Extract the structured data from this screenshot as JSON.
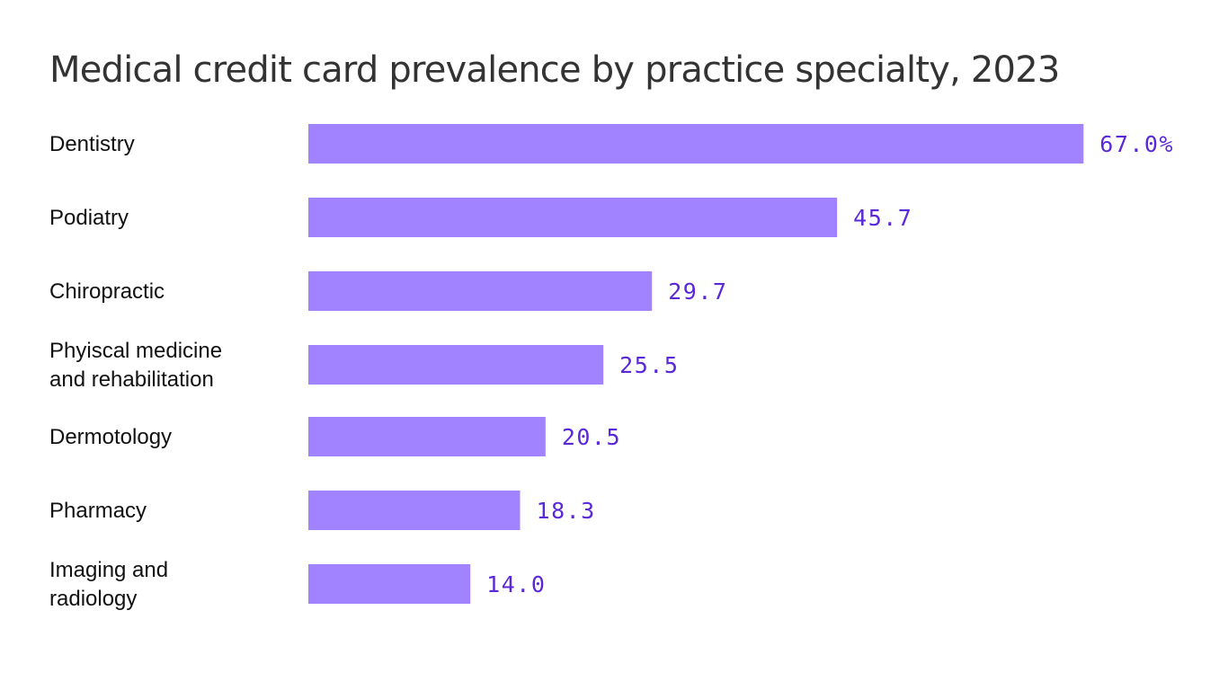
{
  "chart_data": {
    "type": "bar",
    "orientation": "horizontal",
    "title": "Medical credit card prevalence by practice specialty, 2023",
    "categories": [
      [
        "Dentistry"
      ],
      [
        "Podiatry"
      ],
      [
        "Chiropractic"
      ],
      [
        "Phyiscal medicine",
        "and rehabilitation"
      ],
      [
        "Dermotology"
      ],
      [
        "Pharmacy"
      ],
      [
        "Imaging and",
        "radiology"
      ]
    ],
    "values": [
      67.0,
      45.7,
      29.7,
      25.5,
      20.5,
      18.3,
      14.0
    ],
    "value_labels": [
      "67.0%",
      "45.7",
      "29.7",
      "25.5",
      "20.5",
      "18.3",
      "14.0"
    ],
    "xlabel": "",
    "ylabel": "",
    "xlim": [
      0,
      67
    ],
    "grid": false,
    "colors": {
      "bar": "#a182ff",
      "value_label": "#5a27d9",
      "category_label": "#111111",
      "title": "#333333"
    }
  }
}
